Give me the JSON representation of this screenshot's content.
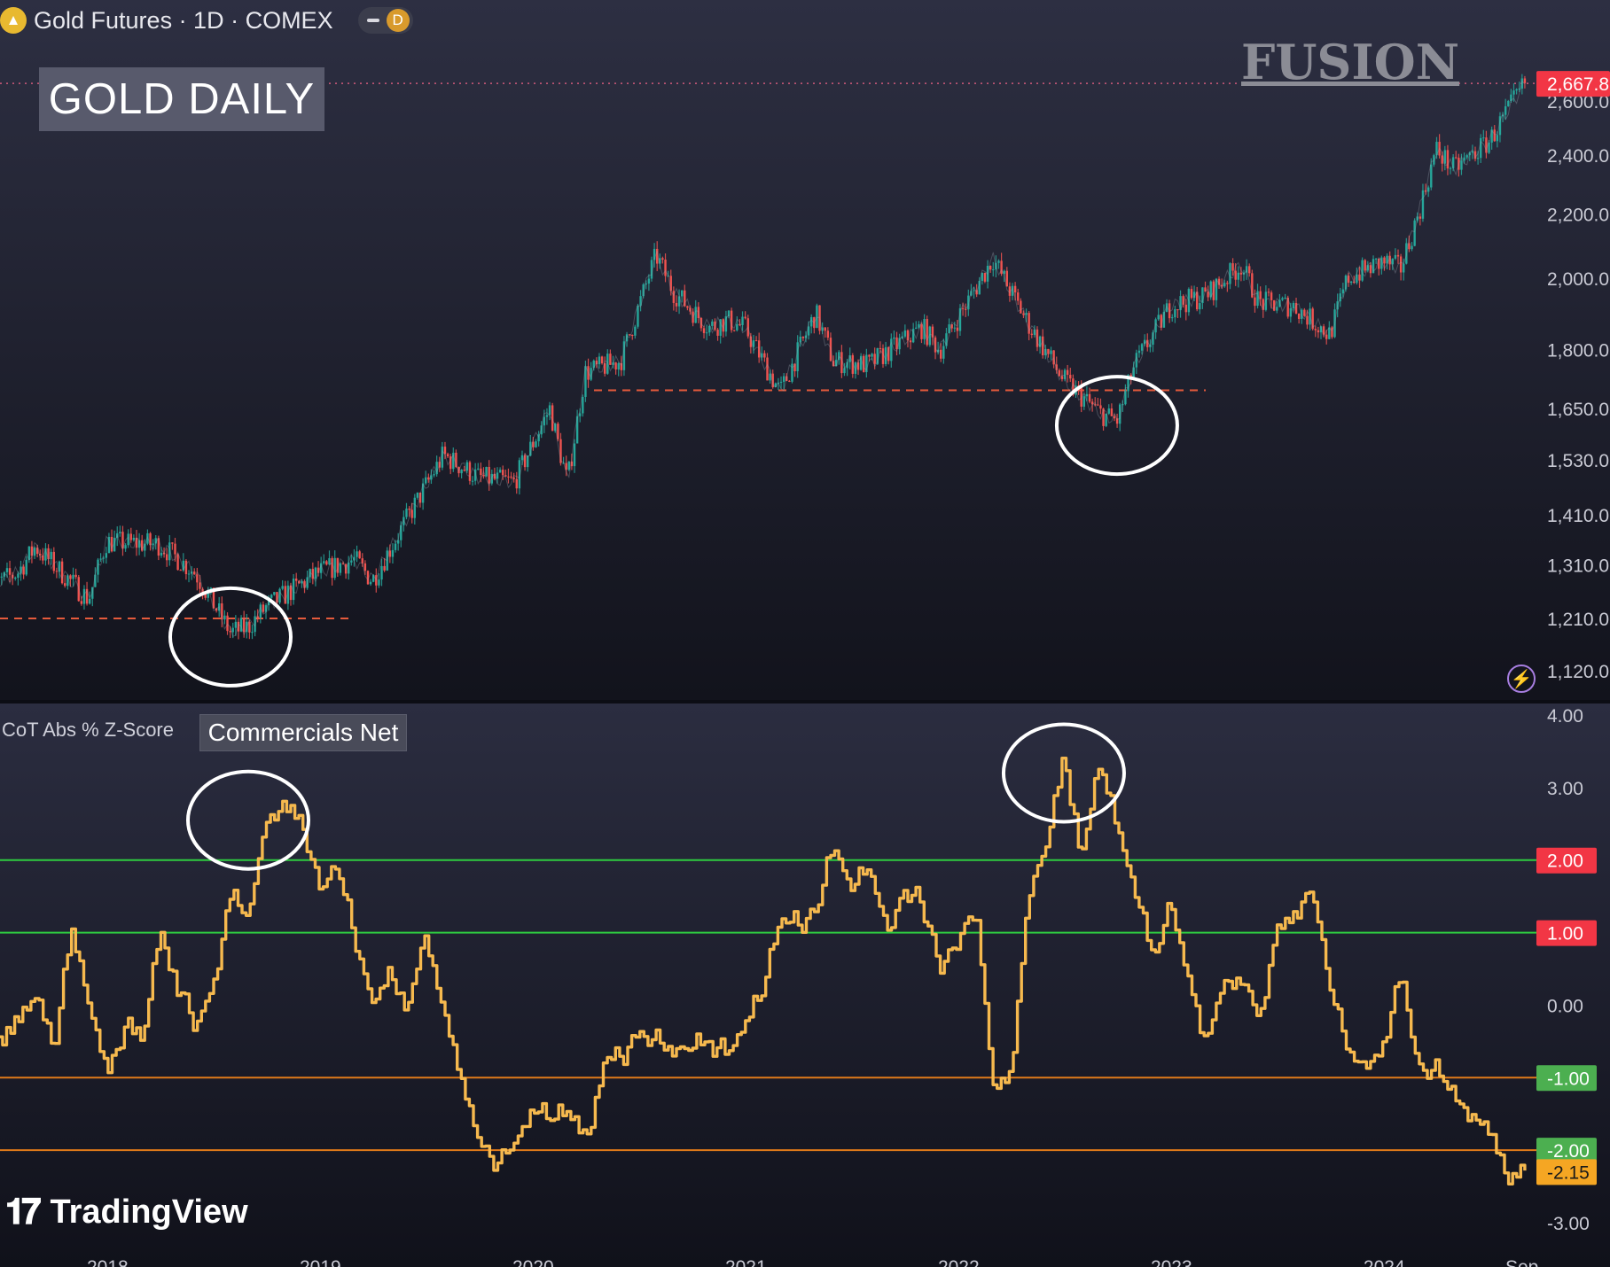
{
  "header": {
    "symbol_title": "Gold Futures · 1D · COMEX",
    "symbol_icon": "gold-coin-icon",
    "session_badge": "D"
  },
  "overlay": {
    "chart_title": "GOLD DAILY",
    "watermark": "FUSION",
    "brand": "TradingView"
  },
  "indicator": {
    "name": "CoT Abs % Z-Score",
    "series_label": "Commercials Net"
  },
  "colors": {
    "background": "#141520",
    "candle_up": "#26a69a",
    "candle_down": "#ef5350",
    "zscore_line": "#f6b94e",
    "level_green": "#2ecc40",
    "level_orange": "#e07a1a",
    "badge_red": "#f23645",
    "badge_green": "#4caf50",
    "badge_orange": "#f5a623",
    "dashed_support": "#e55a3c"
  },
  "chart_data": [
    {
      "type": "line",
      "title": "GOLD DAILY",
      "scale": "log",
      "x_range": [
        "2017-06",
        "2024-09"
      ],
      "ylim": [
        1120,
        2700
      ],
      "y_ticks": [
        "1,120.0",
        "1,210.0",
        "1,310.0",
        "1,410.0",
        "1,530.0",
        "1,650.0",
        "1,800.0",
        "2,000.0",
        "2,200.0",
        "2,400.0",
        "2,600.0"
      ],
      "last_price": "2,667.8",
      "x": [
        "2017-06",
        "2017-08",
        "2017-09",
        "2017-12",
        "2018-01",
        "2018-04",
        "2018-06",
        "2018-08",
        "2018-09",
        "2018-10",
        "2019-01",
        "2019-03",
        "2019-04",
        "2019-06",
        "2019-08",
        "2019-10",
        "2019-12",
        "2020-02",
        "2020-03",
        "2020-04",
        "2020-06",
        "2020-08",
        "2020-09",
        "2020-11",
        "2020-12",
        "2021-01",
        "2021-03",
        "2021-05",
        "2021-06",
        "2021-08",
        "2021-11",
        "2021-12",
        "2022-03",
        "2022-05",
        "2022-07",
        "2022-09",
        "2022-10",
        "2022-11",
        "2023-01",
        "2023-03",
        "2023-05",
        "2023-06",
        "2023-08",
        "2023-10",
        "2023-11",
        "2024-01",
        "2024-02",
        "2024-03",
        "2024-04",
        "2024-05",
        "2024-07",
        "2024-09"
      ],
      "values": [
        1260,
        1295,
        1345,
        1245,
        1355,
        1350,
        1295,
        1185,
        1195,
        1230,
        1295,
        1320,
        1280,
        1405,
        1540,
        1490,
        1480,
        1650,
        1480,
        1740,
        1770,
        2070,
        1960,
        1860,
        1880,
        1860,
        1690,
        1900,
        1770,
        1760,
        1860,
        1800,
        2060,
        1870,
        1720,
        1640,
        1620,
        1760,
        1920,
        1950,
        2040,
        1930,
        1920,
        1840,
        2000,
        2050,
        2030,
        2200,
        2420,
        2350,
        2450,
        2668
      ],
      "annotations": {
        "support_levels": [
          1210,
          1695
        ],
        "circled_lows": [
          "2018-08",
          "2022-10"
        ]
      }
    },
    {
      "type": "line",
      "title": "CoT Abs % Z-Score",
      "series": [
        {
          "name": "Commercials Net"
        }
      ],
      "ylim": [
        -3,
        4
      ],
      "y_ticks": [
        "4.00",
        "3.00",
        "2.00",
        "1.00",
        "0.00",
        "-1.00",
        "-2.00",
        "-3.00"
      ],
      "x_ticks": [
        "2018",
        "2019",
        "2020",
        "2021",
        "2022",
        "2023",
        "2024",
        "Sep"
      ],
      "levels": [
        {
          "value": 2,
          "label": "2.00",
          "style": "red"
        },
        {
          "value": 1,
          "label": "1.00",
          "style": "red"
        },
        {
          "value": -1,
          "label": "-1.00",
          "style": "green"
        },
        {
          "value": -2,
          "label": "-2.00",
          "style": "green"
        }
      ],
      "last_value": "-2.15",
      "x": [
        "2017-06",
        "2017-07",
        "2017-09",
        "2017-10",
        "2017-11",
        "2017-12",
        "2018-01",
        "2018-02",
        "2018-03",
        "2018-04",
        "2018-05",
        "2018-06",
        "2018-07",
        "2018-08",
        "2018-09",
        "2018-10",
        "2018-11",
        "2018-12",
        "2019-01",
        "2019-02",
        "2019-03",
        "2019-04",
        "2019-05",
        "2019-06",
        "2019-07",
        "2019-08",
        "2019-09",
        "2019-10",
        "2019-11",
        "2019-12",
        "2020-01",
        "2020-02",
        "2020-03",
        "2020-04",
        "2020-05",
        "2020-06",
        "2020-07",
        "2020-08",
        "2020-09",
        "2020-10",
        "2020-11",
        "2020-12",
        "2021-01",
        "2021-02",
        "2021-03",
        "2021-04",
        "2021-05",
        "2021-06",
        "2021-07",
        "2021-08",
        "2021-09",
        "2021-10",
        "2021-11",
        "2021-12",
        "2022-01",
        "2022-02",
        "2022-03",
        "2022-04",
        "2022-05",
        "2022-06",
        "2022-07",
        "2022-08",
        "2022-09",
        "2022-10",
        "2022-11",
        "2022-12",
        "2023-01",
        "2023-02",
        "2023-03",
        "2023-04",
        "2023-05",
        "2023-06",
        "2023-07",
        "2023-08",
        "2023-09",
        "2023-10",
        "2023-11",
        "2023-12",
        "2024-01",
        "2024-02",
        "2024-03",
        "2024-04",
        "2024-05",
        "2024-06",
        "2024-07",
        "2024-08",
        "2024-09"
      ],
      "values": [
        0,
        -0.6,
        0.1,
        -0.6,
        1,
        0,
        -1,
        -0.3,
        -0.5,
        1,
        0.3,
        -0.3,
        0.3,
        1.5,
        1.2,
        2.6,
        2.7,
        2.5,
        1.6,
        1.9,
        0.9,
        0,
        0.4,
        0,
        1,
        -0.1,
        -1.1,
        -1.9,
        -2.2,
        -1.9,
        -1.4,
        -1.6,
        -1.5,
        -1.9,
        -0.8,
        -0.7,
        -0.4,
        -0.5,
        -0.6,
        -0.6,
        -0.5,
        -0.7,
        -0.3,
        0.2,
        1.2,
        1.1,
        1.3,
        2.2,
        1.6,
        1.9,
        1.0,
        1.6,
        1.4,
        0.5,
        0.9,
        1.4,
        -1.1,
        -0.9,
        1.6,
        2.2,
        3.4,
        2.1,
        3.3,
        2.4,
        1.6,
        0.6,
        1.4,
        0.4,
        -0.5,
        0.3,
        0.4,
        -0.2,
        1.1,
        1.3,
        1.6,
        0.2,
        -0.6,
        -0.9,
        -0.5,
        0.4,
        -0.9,
        -0.9,
        -1.3,
        -1.5,
        -1.8,
        -2.4,
        -2.15
      ]
    }
  ]
}
